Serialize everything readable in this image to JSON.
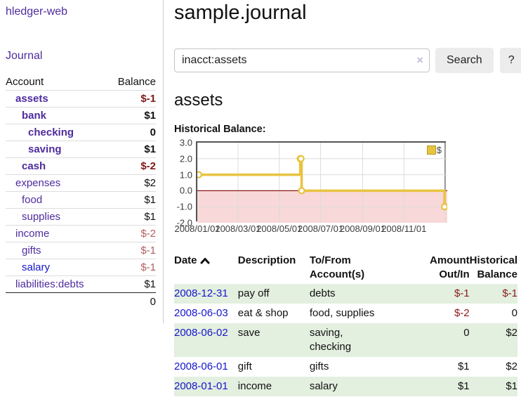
{
  "app": {
    "title": "hledger-web"
  },
  "sidebar": {
    "nav": {
      "journal_label": "Journal"
    },
    "accounts": {
      "headers": {
        "account": "Account",
        "balance": "Balance"
      },
      "rows": [
        {
          "name": "assets",
          "balance": "$-1",
          "level": 1,
          "emph": true,
          "name_color": "purple",
          "amount_style": "neg-strong"
        },
        {
          "name": "bank",
          "balance": "$1",
          "level": 2,
          "emph": true,
          "name_color": "purple",
          "amount_style": "pos"
        },
        {
          "name": "checking",
          "balance": "0",
          "level": 3,
          "emph": true,
          "name_color": "purple",
          "amount_style": "pos"
        },
        {
          "name": "saving",
          "balance": "$1",
          "level": 3,
          "emph": true,
          "name_color": "purple",
          "amount_style": "pos"
        },
        {
          "name": "cash",
          "balance": "$-2",
          "level": 2,
          "emph": true,
          "name_color": "purple",
          "amount_style": "neg-strong"
        },
        {
          "name": "expenses",
          "balance": "$2",
          "level": 1,
          "emph": false,
          "name_color": "purple",
          "amount_style": "pos"
        },
        {
          "name": "food",
          "balance": "$1",
          "level": 2,
          "emph": false,
          "name_color": "purple",
          "amount_style": "pos"
        },
        {
          "name": "supplies",
          "balance": "$1",
          "level": 2,
          "emph": false,
          "name_color": "purple",
          "amount_style": "pos"
        },
        {
          "name": "income",
          "balance": "$-2",
          "level": 1,
          "emph": false,
          "name_color": "purple",
          "amount_style": "neg-muted"
        },
        {
          "name": "gifts",
          "balance": "$-1",
          "level": 2,
          "emph": false,
          "name_color": "purple",
          "amount_style": "neg-muted"
        },
        {
          "name": "salary",
          "balance": "$-1",
          "level": 2,
          "emph": false,
          "name_color": "blue",
          "amount_style": "neg-muted"
        },
        {
          "name": "liabilities:debts",
          "balance": "$1",
          "level": 1,
          "emph": false,
          "name_color": "purple",
          "amount_style": "pos"
        }
      ],
      "total": "0"
    }
  },
  "main": {
    "title": "sample.journal",
    "search": {
      "value": "inacct:assets",
      "clear_icon": "×",
      "button_label": "Search",
      "help_label": "?"
    },
    "section_title": "assets",
    "chart_label": "Historical Balance:"
  },
  "chart_data": {
    "type": "line",
    "title": "Historical Balance",
    "legend": [
      "$"
    ],
    "legend_position": "top-right",
    "grid": true,
    "step": true,
    "xlim": [
      "2008-01-01",
      "2009-01-04"
    ],
    "ylim": [
      -2,
      3
    ],
    "yticks": [
      3.0,
      2.0,
      1.0,
      0.0,
      -1.0,
      -2.0
    ],
    "xticks": [
      {
        "date": "2008-01-01",
        "label": "2008/01/01"
      },
      {
        "date": "2008-03-01",
        "label": "2008/03/01"
      },
      {
        "date": "2008-05-01",
        "label": "2008/05/01"
      },
      {
        "date": "2008-07-01",
        "label": "2008/07/01"
      },
      {
        "date": "2008-09-01",
        "label": "2008/09/01"
      },
      {
        "date": "2008-11-01",
        "label": "2008/11/01"
      },
      {
        "date": "2009-01-01",
        "label": ""
      }
    ],
    "series": [
      {
        "name": "$",
        "points": [
          [
            "2008-01-01",
            1
          ],
          [
            "2008-06-01",
            2
          ],
          [
            "2008-06-02",
            2
          ],
          [
            "2008-06-03",
            0
          ],
          [
            "2008-12-31",
            -1
          ]
        ]
      }
    ],
    "colors": {
      "series": "#e8c33f",
      "grid": "#dcdcdc",
      "zero_line": "#8b1515",
      "negative_region": "#f8d8d8",
      "plot_border": "#545454"
    }
  },
  "register": {
    "headers": {
      "date": "Date",
      "description": "Description",
      "tofrom_line1": "To/From",
      "tofrom_line2": "Account(s)",
      "amount_line1": "Amount",
      "amount_line2": "Out/In",
      "balance_line1": "Historical",
      "balance_line2": "Balance"
    },
    "rows": [
      {
        "date": "2008-12-31",
        "description": "pay off",
        "tofrom": "debts",
        "amount": "$-1",
        "balance": "$-1"
      },
      {
        "date": "2008-06-03",
        "description": "eat & shop",
        "tofrom": "food, supplies",
        "amount": "$-2",
        "balance": "0"
      },
      {
        "date": "2008-06-02",
        "description": "save",
        "tofrom": "saving, checking",
        "amount": "0",
        "balance": "$2"
      },
      {
        "date": "2008-06-01",
        "description": "gift",
        "tofrom": "gifts",
        "amount": "$1",
        "balance": "$2"
      },
      {
        "date": "2008-01-01",
        "description": "income",
        "tofrom": "salary",
        "amount": "$1",
        "balance": "$1"
      }
    ]
  }
}
